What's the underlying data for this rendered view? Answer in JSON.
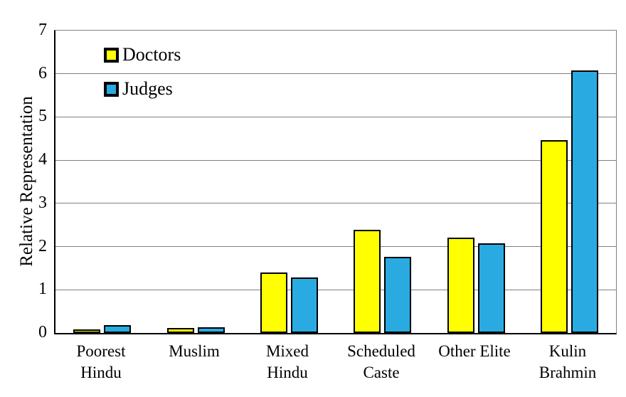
{
  "chart_data": {
    "type": "bar",
    "title": "",
    "xlabel": "",
    "ylabel": "Relative Representation",
    "ylim": [
      0,
      7
    ],
    "ytick_step": 1,
    "grid": true,
    "legend_position": "top-left-inside",
    "categories": [
      "Poorest Hindu",
      "Muslim",
      "Mixed Hindu",
      "Scheduled Caste",
      "Other Elite",
      "Kulin Brahmin"
    ],
    "series": [
      {
        "name": "Doctors",
        "color": "#FFFF00",
        "values": [
          0.08,
          0.12,
          1.4,
          2.38,
          2.21,
          4.47
        ]
      },
      {
        "name": "Judges",
        "color": "#29ABE2",
        "values": [
          0.18,
          0.13,
          1.29,
          1.77,
          2.08,
          6.07
        ]
      }
    ],
    "bar_border_color": "#000000",
    "axis_color": "#000000",
    "gridline_color": "#808080"
  }
}
